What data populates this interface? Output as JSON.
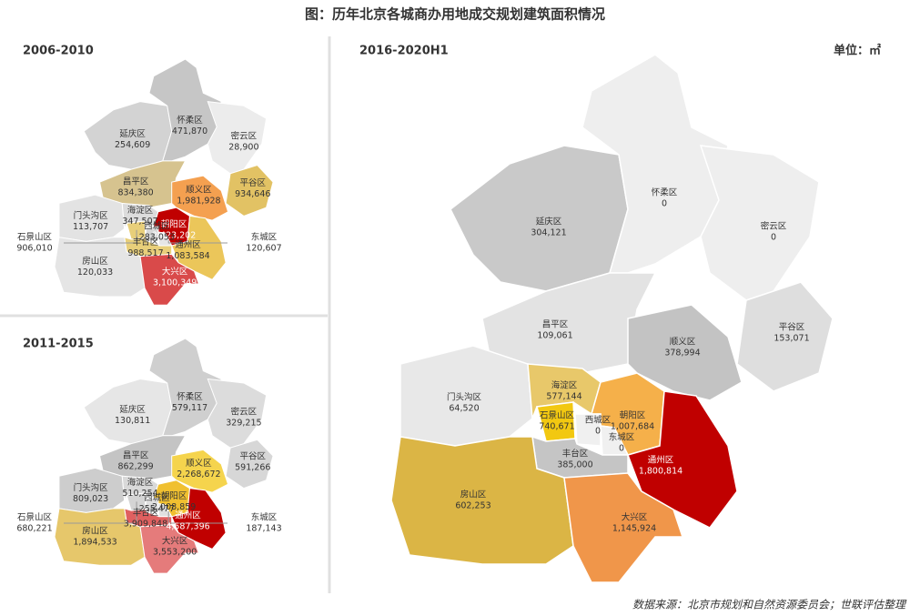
{
  "title": "图：历年北京各城商办用地成交规划建筑面积情况",
  "unit": "单位：㎡",
  "source": "数据来源：北京市规划和自然资源委员会；世联评估整理",
  "panels": [
    {
      "title": "2006-2010",
      "districts": [
        {
          "name": "延庆区",
          "value": "254,609",
          "color": "#d3d3d3"
        },
        {
          "name": "怀柔区",
          "value": "471,870",
          "color": "#c6c6c6"
        },
        {
          "name": "密云区",
          "value": "28,900",
          "color": "#ececec"
        },
        {
          "name": "平谷区",
          "value": "934,646",
          "color": "#e2c264"
        },
        {
          "name": "昌平区",
          "value": "834,380",
          "color": "#d6c38f"
        },
        {
          "name": "顺义区",
          "value": "1,981,928",
          "color": "#f4a050"
        },
        {
          "name": "门头沟区",
          "value": "113,707",
          "color": "#e3e3e3"
        },
        {
          "name": "海淀区",
          "value": "347,507",
          "color": "#dcdcdc"
        },
        {
          "name": "石景山区",
          "value": "906,010",
          "color": "#e8cf7a"
        },
        {
          "name": "朝阳区",
          "value": "2,423,202",
          "color": "#c00000"
        },
        {
          "name": "西城区",
          "value": "283,053",
          "color": "#d8d8d8"
        },
        {
          "name": "东城区",
          "value": "120,607",
          "color": "#e6e6e6"
        },
        {
          "name": "丰台区",
          "value": "988,517",
          "color": "#e8cf7a"
        },
        {
          "name": "通州区",
          "value": "1,083,584",
          "color": "#ebc65a"
        },
        {
          "name": "房山区",
          "value": "120,033",
          "color": "#e5e5e5"
        },
        {
          "name": "大兴区",
          "value": "3,100,349",
          "color": "#d94a4a"
        }
      ]
    },
    {
      "title": "2011-2015",
      "districts": [
        {
          "name": "延庆区",
          "value": "130,811",
          "color": "#e6e6e6"
        },
        {
          "name": "怀柔区",
          "value": "579,117",
          "color": "#cfcfcf"
        },
        {
          "name": "密云区",
          "value": "329,215",
          "color": "#dcdcdc"
        },
        {
          "name": "平谷区",
          "value": "591,266",
          "color": "#d7d7d7"
        },
        {
          "name": "昌平区",
          "value": "862,299",
          "color": "#c4c4c4"
        },
        {
          "name": "顺义区",
          "value": "2,268,672",
          "color": "#f5d44d"
        },
        {
          "name": "门头沟区",
          "value": "809,023",
          "color": "#cdcdcd"
        },
        {
          "name": "海淀区",
          "value": "510,254",
          "color": "#d9d9d9"
        },
        {
          "name": "石景山区",
          "value": "680,221",
          "color": "#d4d4d4"
        },
        {
          "name": "朝阳区",
          "value": "2,008,859",
          "color": "#f0c030"
        },
        {
          "name": "西城区",
          "value": "255,477",
          "color": "#e0e0e0"
        },
        {
          "name": "东城区",
          "value": "187,143",
          "color": "#e0e0e0"
        },
        {
          "name": "丰台区",
          "value": "3,909,848",
          "color": "#e06060"
        },
        {
          "name": "通州区",
          "value": "4,587,396",
          "color": "#c00000"
        },
        {
          "name": "房山区",
          "value": "1,894,533",
          "color": "#e6c76b"
        },
        {
          "name": "大兴区",
          "value": "3,553,200",
          "color": "#e57b7b"
        }
      ]
    },
    {
      "title": "2016-2020H1",
      "districts": [
        {
          "name": "延庆区",
          "value": "304,121",
          "color": "#c9c9c9"
        },
        {
          "name": "怀柔区",
          "value": "0",
          "color": "#eeeeee"
        },
        {
          "name": "密云区",
          "value": "0",
          "color": "#eeeeee"
        },
        {
          "name": "平谷区",
          "value": "153,071",
          "color": "#dedede"
        },
        {
          "name": "昌平区",
          "value": "109,061",
          "color": "#e3e3e3"
        },
        {
          "name": "顺义区",
          "value": "378,994",
          "color": "#c3c3c3"
        },
        {
          "name": "门头沟区",
          "value": "64,520",
          "color": "#e8e8e8"
        },
        {
          "name": "海淀区",
          "value": "577,144",
          "color": "#e8c86a"
        },
        {
          "name": "石景山区",
          "value": "740,671",
          "color": "#f2c811"
        },
        {
          "name": "朝阳区",
          "value": "1,007,684",
          "color": "#f5b04a"
        },
        {
          "name": "西城区",
          "value": "0",
          "color": "#f0f0f0"
        },
        {
          "name": "东城区",
          "value": "0",
          "color": "#f0f0f0"
        },
        {
          "name": "丰台区",
          "value": "385,000",
          "color": "#c5c5c5"
        },
        {
          "name": "通州区",
          "value": "1,800,814",
          "color": "#c00000"
        },
        {
          "name": "房山区",
          "value": "602,253",
          "color": "#dbb545"
        },
        {
          "name": "大兴区",
          "value": "1,145,924",
          "color": "#f0964a"
        }
      ]
    }
  ]
}
